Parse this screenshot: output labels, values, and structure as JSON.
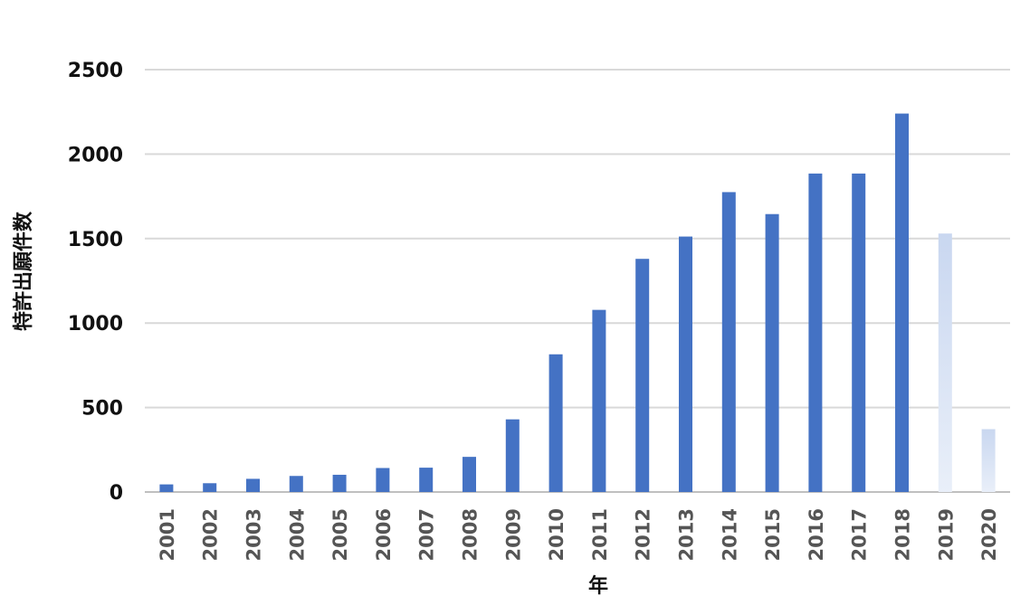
{
  "chart_data": {
    "type": "bar",
    "title": "",
    "xlabel": "年",
    "ylabel": "特許出願件数",
    "categories": [
      "2001",
      "2002",
      "2003",
      "2004",
      "2005",
      "2006",
      "2007",
      "2008",
      "2009",
      "2010",
      "2011",
      "2012",
      "2013",
      "2014",
      "2015",
      "2016",
      "2017",
      "2018",
      "2019",
      "2020"
    ],
    "values": [
      45,
      52,
      78,
      95,
      102,
      142,
      144,
      208,
      430,
      815,
      1078,
      1380,
      1512,
      1775,
      1645,
      1885,
      1885,
      2240,
      1530,
      372
    ],
    "ylim": [
      0,
      2500
    ],
    "yticks": [
      0,
      500,
      1000,
      1500,
      2000,
      2500
    ],
    "grid": true,
    "legend": "none",
    "colors": {
      "bar": "#4472C4",
      "bar_faded_top": "#C9D7F0",
      "bar_faded_bottom": "#E3EBF8",
      "grid": "#D9D9D9",
      "axis": "#BFBFBF"
    },
    "faded_categories": [
      "2019",
      "2020"
    ]
  }
}
